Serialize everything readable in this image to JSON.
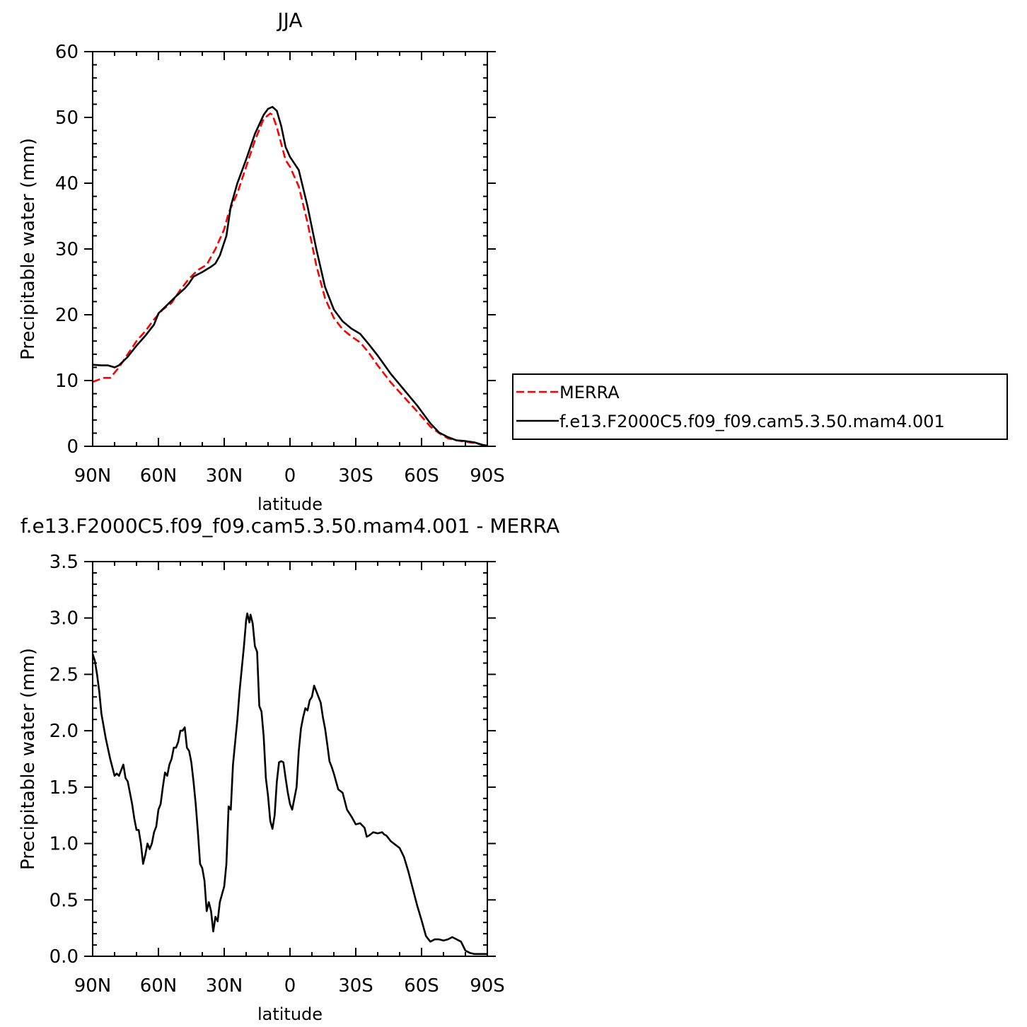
{
  "chart_data": [
    {
      "type": "line",
      "title": "JJA",
      "xlabel": "latitude",
      "ylabel": "Precipitable water (mm)",
      "xlim": [
        90,
        -90
      ],
      "ylim": [
        0,
        60
      ],
      "x_ticks": [
        90,
        60,
        30,
        0,
        -30,
        -60,
        -90
      ],
      "x_tick_labels": [
        "90N",
        "60N",
        "30N",
        "0",
        "30S",
        "60S",
        "90S"
      ],
      "y_ticks": [
        0,
        10,
        20,
        30,
        40,
        50,
        60
      ],
      "y_tick_labels": [
        "0",
        "10",
        "20",
        "30",
        "40",
        "50",
        "60"
      ],
      "legend": {
        "placement": "right"
      },
      "series": [
        {
          "name": "MERRA",
          "color": "#ff0000",
          "dash": true,
          "x": [
            90,
            85,
            82,
            78,
            74,
            70,
            66,
            62,
            58,
            54,
            50,
            46,
            42,
            38,
            34,
            30,
            28,
            24,
            20,
            16,
            12,
            9,
            8,
            6,
            4,
            2,
            0,
            -4,
            -8,
            -12,
            -16,
            -20,
            -24,
            -28,
            -32,
            -36,
            -40,
            -46,
            -52,
            -58,
            -64,
            -68,
            -72,
            -76,
            -80,
            -84,
            -88,
            -90
          ],
          "y": [
            9.8,
            10.4,
            10.4,
            12.0,
            14.0,
            16.0,
            17.5,
            19.3,
            20.8,
            21.8,
            23.8,
            25.5,
            26.8,
            27.6,
            30.0,
            33.0,
            35.5,
            38.5,
            42.5,
            46.5,
            49.8,
            50.6,
            50.4,
            48.5,
            46.0,
            43.5,
            42.5,
            39.5,
            34.0,
            27.5,
            22.5,
            19.5,
            17.8,
            16.7,
            15.8,
            14.2,
            12.3,
            9.7,
            7.5,
            5.3,
            3.0,
            2.0,
            1.2,
            0.9,
            0.7,
            0.5,
            0.2,
            0.1
          ]
        },
        {
          "name": "f.e13.F2000C5.f09_f09.cam5.3.50.mam4.001",
          "color": "#000000",
          "dash": false,
          "x": [
            90,
            86,
            83,
            80,
            78,
            74,
            70,
            66,
            62,
            60,
            56,
            52,
            48,
            46,
            44,
            40,
            36,
            34,
            32,
            29,
            27,
            24,
            20,
            16,
            12,
            10,
            8,
            6,
            4,
            2,
            0,
            -4,
            -8,
            -12,
            -16,
            -20,
            -24,
            -28,
            -32,
            -36,
            -40,
            -46,
            -52,
            -58,
            -64,
            -68,
            -72,
            -76,
            -80,
            -84,
            -88,
            -90
          ],
          "y": [
            12.4,
            12.3,
            12.3,
            12.0,
            12.3,
            13.6,
            15.3,
            16.8,
            18.5,
            20.2,
            21.5,
            22.8,
            24.0,
            24.8,
            25.8,
            26.5,
            27.3,
            27.8,
            29.0,
            32.0,
            36.5,
            40.0,
            43.6,
            47.5,
            50.4,
            51.3,
            51.6,
            51.0,
            48.7,
            45.5,
            44.0,
            42.0,
            36.5,
            30.0,
            24.2,
            20.8,
            19.0,
            17.9,
            17.1,
            15.5,
            13.8,
            11.0,
            8.6,
            6.2,
            3.5,
            2.1,
            1.4,
            0.9,
            0.8,
            0.6,
            0.2,
            0.1
          ]
        }
      ]
    },
    {
      "type": "line",
      "title": "f.e13.F2000C5.f09_f09.cam5.3.50.mam4.001 - MERRA",
      "xlabel": "latitude",
      "ylabel": "Precipitable water (mm)",
      "xlim": [
        90,
        -90
      ],
      "ylim": [
        0,
        3.5
      ],
      "x_ticks": [
        90,
        60,
        30,
        0,
        -30,
        -60,
        -90
      ],
      "x_tick_labels": [
        "90N",
        "60N",
        "30N",
        "0",
        "30S",
        "60S",
        "90S"
      ],
      "y_ticks": [
        0,
        0.5,
        1.0,
        1.5,
        2.0,
        2.5,
        3.0,
        3.5
      ],
      "y_tick_labels": [
        "0.0",
        "0.5",
        "1.0",
        "1.5",
        "2.0",
        "2.5",
        "3.0",
        "3.5"
      ],
      "series": [
        {
          "color": "#000000",
          "dash": false,
          "x": [
            90,
            89,
            88,
            87,
            86,
            84,
            82,
            80,
            79,
            78,
            77,
            76,
            75,
            74,
            73,
            72,
            71,
            70,
            69,
            68,
            67,
            66,
            65,
            64,
            63,
            62,
            61,
            60,
            59,
            58,
            57,
            56,
            55,
            54,
            53,
            52,
            51,
            50,
            49,
            48,
            47,
            46,
            45,
            44,
            43,
            42,
            41,
            40,
            39,
            38,
            37,
            36,
            35,
            34,
            33,
            32,
            31,
            30,
            29,
            28,
            27,
            26,
            25,
            24,
            23,
            22,
            21,
            20,
            19.5,
            19,
            18.5,
            18,
            17,
            16,
            15,
            14,
            13,
            12,
            11,
            10,
            9,
            8,
            7,
            6,
            5,
            4,
            3,
            2,
            1,
            0,
            -1,
            -2,
            -3,
            -4,
            -5,
            -6,
            -7,
            -8,
            -9,
            -10,
            -11,
            -12,
            -13,
            -14,
            -15,
            -16,
            -17,
            -18,
            -19,
            -20,
            -21,
            -22,
            -24,
            -26,
            -28,
            -30,
            -32,
            -34,
            -35,
            -36,
            -38,
            -40,
            -42,
            -43,
            -44,
            -46,
            -48,
            -50,
            -52,
            -54,
            -56,
            -58,
            -60,
            -62,
            -64,
            -66,
            -68,
            -70,
            -72,
            -74,
            -76,
            -78,
            -80,
            -82,
            -84,
            -86,
            -88,
            -90
          ],
          "y": [
            2.68,
            2.62,
            2.5,
            2.35,
            2.15,
            1.93,
            1.75,
            1.6,
            1.62,
            1.6,
            1.65,
            1.7,
            1.58,
            1.55,
            1.45,
            1.35,
            1.22,
            1.12,
            1.12,
            1.0,
            0.82,
            0.9,
            1.0,
            0.95,
            1.0,
            1.1,
            1.15,
            1.3,
            1.35,
            1.5,
            1.63,
            1.6,
            1.7,
            1.75,
            1.85,
            1.85,
            1.9,
            2.0,
            2.0,
            2.03,
            1.85,
            1.82,
            1.72,
            1.55,
            1.35,
            1.1,
            0.82,
            0.78,
            0.67,
            0.4,
            0.48,
            0.4,
            0.22,
            0.35,
            0.31,
            0.48,
            0.55,
            0.62,
            0.82,
            1.33,
            1.3,
            1.7,
            1.9,
            2.1,
            2.35,
            2.55,
            2.75,
            2.98,
            3.04,
            3.0,
            2.96,
            3.03,
            2.95,
            2.75,
            2.7,
            2.22,
            2.17,
            1.95,
            1.58,
            1.42,
            1.2,
            1.13,
            1.25,
            1.55,
            1.72,
            1.73,
            1.72,
            1.58,
            1.45,
            1.35,
            1.3,
            1.4,
            1.5,
            1.82,
            2.02,
            2.12,
            2.2,
            2.18,
            2.27,
            2.3,
            2.4,
            2.35,
            2.3,
            2.25,
            2.12,
            2.02,
            1.88,
            1.73,
            1.68,
            1.62,
            1.55,
            1.48,
            1.45,
            1.3,
            1.24,
            1.17,
            1.18,
            1.14,
            1.06,
            1.07,
            1.1,
            1.09,
            1.1,
            1.08,
            1.07,
            1.02,
            0.99,
            0.96,
            0.88,
            0.75,
            0.6,
            0.45,
            0.32,
            0.18,
            0.13,
            0.15,
            0.15,
            0.14,
            0.15,
            0.17,
            0.15,
            0.13,
            0.05,
            0.03,
            0.02,
            0.02,
            0.02,
            0.02
          ]
        }
      ]
    }
  ]
}
